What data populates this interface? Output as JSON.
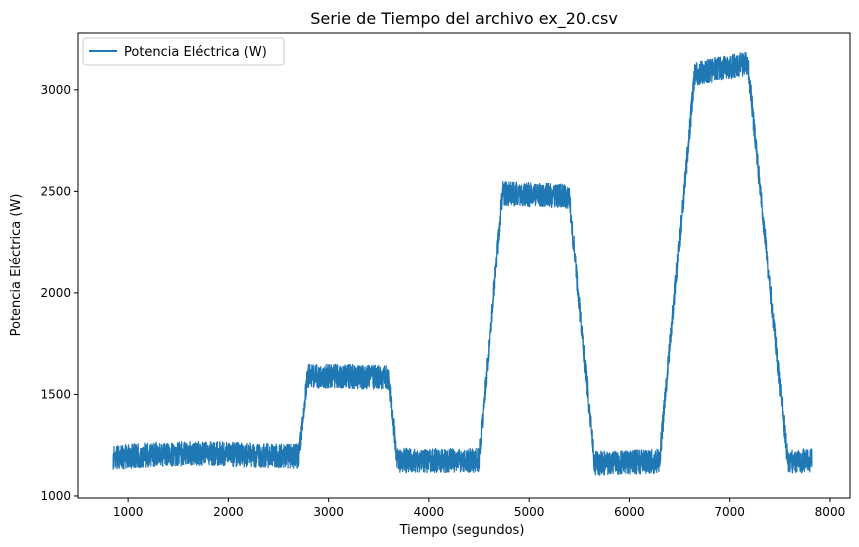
{
  "chart_data": {
    "type": "line",
    "title": "Serie de Tiempo del archivo ex_20.csv",
    "xlabel": "Tiempo (segundos)",
    "ylabel": "Potencia Eléctrica (W)",
    "xlim": [
      500,
      8200
    ],
    "ylim": [
      990,
      3280
    ],
    "xticks": [
      1000,
      2000,
      3000,
      4000,
      5000,
      6000,
      7000,
      8000
    ],
    "yticks": [
      1000,
      1500,
      2000,
      2500,
      3000
    ],
    "grid": false,
    "legend_position": "top-left",
    "series": [
      {
        "name": "Potencia Eléctrica (W)",
        "color": "#1f77b4",
        "noise_band": 60,
        "x": [
          850,
          1300,
          1800,
          2300,
          2700,
          2790,
          3600,
          3680,
          4500,
          4730,
          5400,
          5650,
          6300,
          6650,
          7180,
          7580,
          7820
        ],
        "y": [
          1190,
          1205,
          1210,
          1200,
          1195,
          1590,
          1585,
          1175,
          1175,
          2490,
          2475,
          1160,
          1170,
          3080,
          3130,
          1165,
          1175
        ]
      }
    ]
  }
}
